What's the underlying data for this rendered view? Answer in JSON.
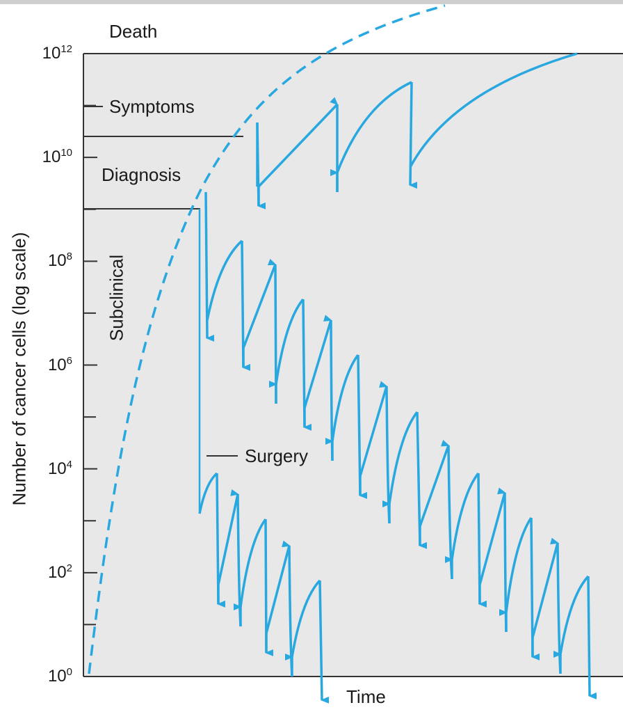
{
  "figure": {
    "y_axis_label": "Number of cancer cells (log scale)",
    "x_axis_label": "Time",
    "y_ticks": [
      {
        "base": "10",
        "exp": "0",
        "value": 1
      },
      {
        "base": "10",
        "exp": "2",
        "value": 100
      },
      {
        "base": "10",
        "exp": "4",
        "value": 10000
      },
      {
        "base": "10",
        "exp": "6",
        "value": 1000000
      },
      {
        "base": "10",
        "exp": "8",
        "value": 100000000
      },
      {
        "base": "10",
        "exp": "10",
        "value": 10000000000
      },
      {
        "base": "10",
        "exp": "12",
        "value": 1000000000000
      }
    ],
    "stage_labels": {
      "death": "Death",
      "symptoms": "Symptoms",
      "diagnosis": "Diagnosis",
      "subclinical": "Subclinical",
      "surgery": "Surgery"
    },
    "colors": {
      "curve": "#29a8e0",
      "plot_background": "#e8e8e8",
      "axis": "#333333",
      "top_rule": "#cfcfcf"
    },
    "scale": "log"
  }
}
